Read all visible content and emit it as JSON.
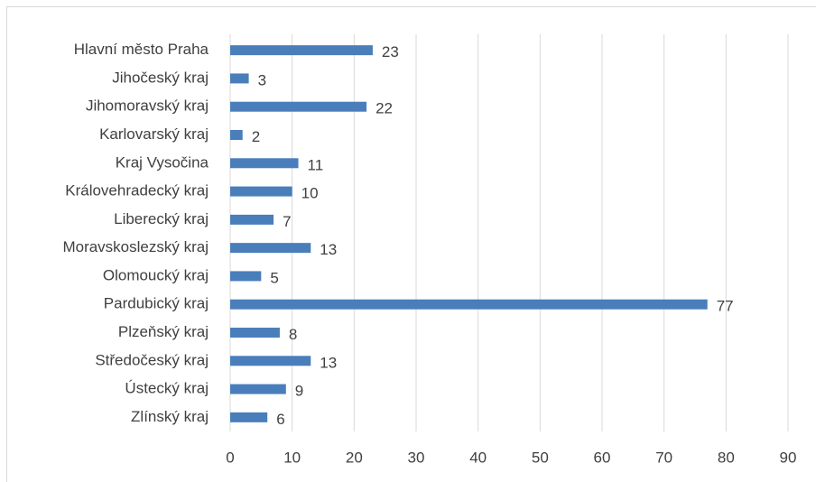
{
  "chart_data": {
    "type": "bar",
    "orientation": "horizontal",
    "categories": [
      "Hlavní město Praha",
      "Jihočeský kraj",
      "Jihomoravský kraj",
      "Karlovarský kraj",
      "Kraj Vysočina",
      "Královehradecký kraj",
      "Liberecký kraj",
      "Moravskoslezský kraj",
      "Olomoucký kraj",
      "Pardubický kraj",
      "Plzeňský kraj",
      "Středočeský kraj",
      "Ústecký kraj",
      "Zlínský kraj"
    ],
    "values": [
      23,
      3,
      22,
      2,
      11,
      10,
      7,
      13,
      5,
      77,
      8,
      13,
      9,
      6
    ],
    "color": "#4a7ebb",
    "xlim": [
      0,
      90
    ],
    "xticks": [
      0,
      10,
      20,
      30,
      40,
      50,
      60,
      70,
      80,
      90
    ],
    "grid": true
  }
}
